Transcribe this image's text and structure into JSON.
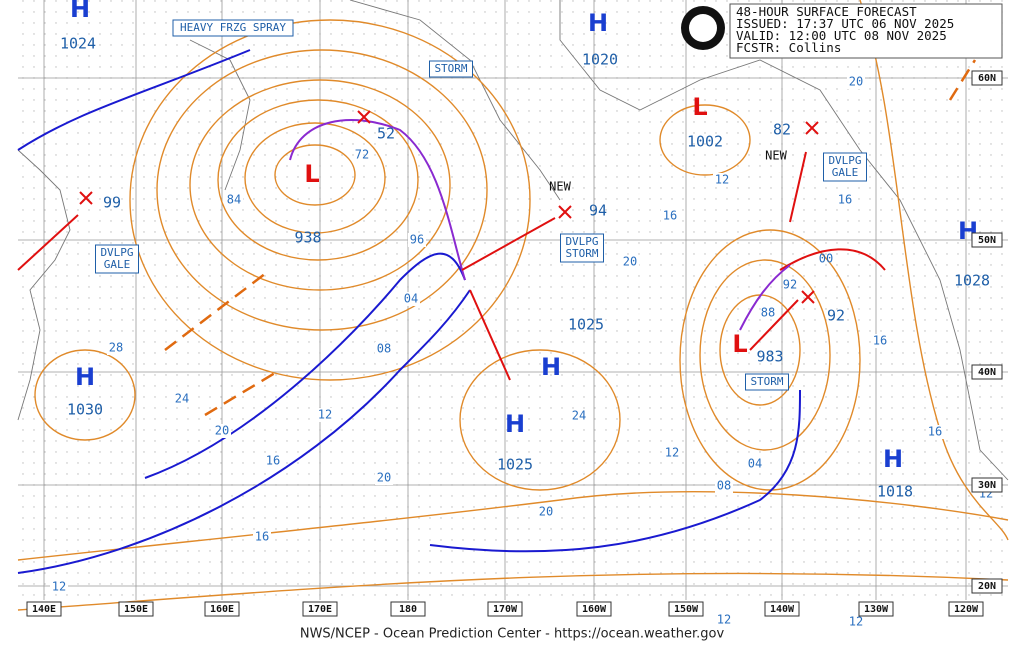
{
  "header": {
    "lines": [
      "48-HOUR SURFACE FORECAST",
      "ISSUED: 17:37 UTC 06 NOV 2025",
      "VALID:  12:00 UTC 08 NOV 2025",
      "FCSTR:  Collins"
    ]
  },
  "footer": "NWS/NCEP - Ocean Prediction Center - https://ocean.weather.gov",
  "pressure_centers": [
    {
      "symbol": "H",
      "value": "1024"
    },
    {
      "symbol": "H",
      "value": "1020"
    },
    {
      "symbol": "L",
      "value": "1002"
    },
    {
      "symbol": "L",
      "value": "938"
    },
    {
      "symbol": "H",
      "value": "1030"
    },
    {
      "symbol": "H",
      "value": "1025"
    },
    {
      "symbol": "L",
      "value": "983"
    },
    {
      "symbol": "H",
      "value": "1018"
    },
    {
      "symbol": "H",
      "value": "1028"
    },
    {
      "symbol": "H",
      "value": "1025"
    }
  ],
  "low_labels": [
    "99",
    "94",
    "52",
    "92",
    "82",
    "72",
    "88",
    "92",
    "00"
  ],
  "new_labels": [
    "NEW",
    "NEW"
  ],
  "warnings": [
    [
      "HEAVY FRZG SPRAY"
    ],
    [
      "STORM"
    ],
    [
      "DVLPG",
      "GALE"
    ],
    [
      "DVLPG",
      "STORM"
    ],
    [
      "STORM"
    ],
    [
      "DVLPG",
      "GALE"
    ]
  ],
  "isobar_labels": [
    "20",
    "12",
    "16",
    "20",
    "84",
    "96",
    "04",
    "08",
    "12",
    "16",
    "20",
    "24",
    "28",
    "20",
    "20",
    "24",
    "12",
    "04",
    "08",
    "16",
    "12",
    "16",
    "16",
    "16",
    "12",
    "12",
    "12"
  ],
  "axes": {
    "lon": [
      "140E",
      "150E",
      "160E",
      "170E",
      "180",
      "170W",
      "160W",
      "150W",
      "140W",
      "130W",
      "120W"
    ],
    "lat": [
      "60N",
      "50N",
      "40N",
      "30N",
      "20N"
    ]
  }
}
